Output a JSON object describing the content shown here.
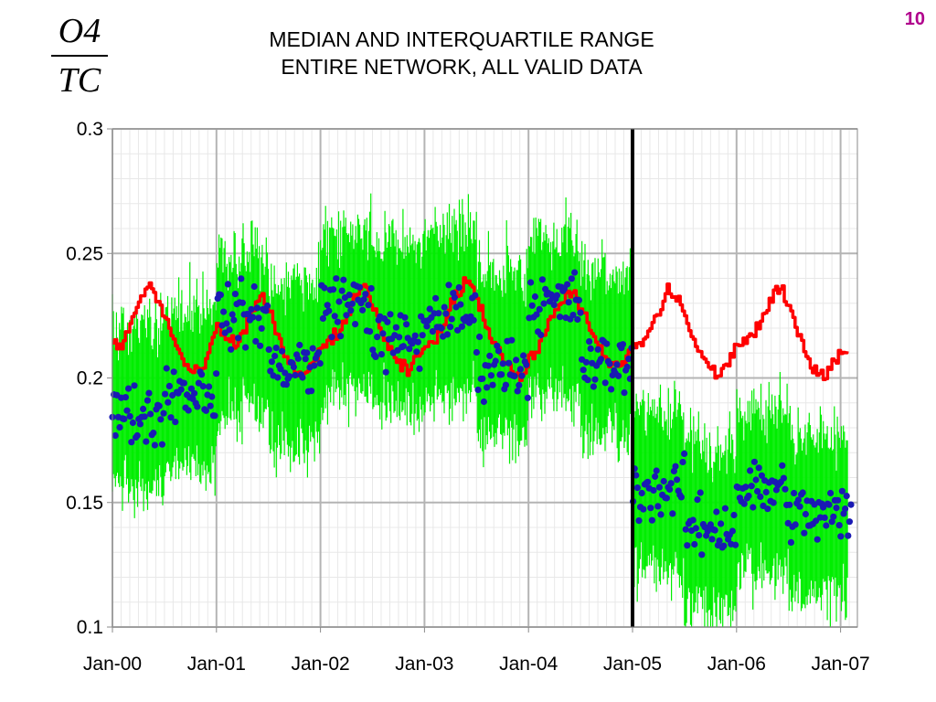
{
  "slide_number": "10",
  "formula": {
    "numerator": "O4",
    "denominator": "TC"
  },
  "title": {
    "line1": "MEDIAN AND INTERQUARTILE RANGE",
    "line2": "ENTIRE NETWORK, ALL VALID DATA"
  },
  "colors": {
    "median_line": "#ff0000",
    "iqr_band": "#00ee00",
    "points": "#1a1ab4",
    "divider": "#000000",
    "grid_major": "#b4b4b4",
    "grid_minor": "#e8e8e8",
    "slide_number": "#b0008c"
  },
  "chart_data": {
    "type": "line",
    "title": "MEDIAN AND INTERQUARTILE RANGE ENTIRE NETWORK, ALL VALID DATA",
    "xlabel": "",
    "ylabel": "",
    "x_tick_labels": [
      "Jan-00",
      "Jan-01",
      "Jan-02",
      "Jan-03",
      "Jan-04",
      "Jan-05",
      "Jan-06",
      "Jan-07"
    ],
    "y_tick_labels": [
      "0.1",
      "0.15",
      "0.2",
      "0.25",
      "0.3"
    ],
    "ylim": [
      0.1,
      0.3
    ],
    "xlim": [
      "2000-01",
      "2007-02"
    ],
    "grid": true,
    "vertical_marker": "2005-01",
    "series": [
      {
        "kind": "line",
        "x": [
          "2000-01",
          "2000-02",
          "2000-03",
          "2000-04",
          "2000-05",
          "2000-06",
          "2000-07",
          "2000-08",
          "2000-09",
          "2000-10",
          "2000-11",
          "2000-12",
          "2001-01",
          "2001-02",
          "2001-03",
          "2001-04",
          "2001-05",
          "2001-06",
          "2001-07",
          "2001-08",
          "2001-09",
          "2001-10",
          "2001-11",
          "2001-12",
          "2002-01",
          "2002-02",
          "2002-03",
          "2002-04",
          "2002-05",
          "2002-06",
          "2002-07",
          "2002-08",
          "2002-09",
          "2002-10",
          "2002-11",
          "2002-12",
          "2003-01",
          "2003-02",
          "2003-03",
          "2003-04",
          "2003-05",
          "2003-06",
          "2003-07",
          "2003-08",
          "2003-09",
          "2003-10",
          "2003-11",
          "2003-12",
          "2004-01",
          "2004-02",
          "2004-03",
          "2004-04",
          "2004-05",
          "2004-06",
          "2004-07",
          "2004-08",
          "2004-09",
          "2004-10",
          "2004-11",
          "2004-12",
          "2005-01",
          "2005-02",
          "2005-03",
          "2005-04",
          "2005-05",
          "2005-06",
          "2005-07",
          "2005-08",
          "2005-09",
          "2005-10",
          "2005-11",
          "2005-12",
          "2006-01",
          "2006-02",
          "2006-03",
          "2006-04",
          "2006-05",
          "2006-06",
          "2006-07",
          "2006-08",
          "2006-09",
          "2006-10",
          "2006-11",
          "2006-12",
          "2007-01"
        ],
        "values": [
          0.215,
          0.212,
          0.222,
          0.23,
          0.238,
          0.232,
          0.225,
          0.215,
          0.207,
          0.203,
          0.201,
          0.21,
          0.22,
          0.216,
          0.213,
          0.218,
          0.226,
          0.234,
          0.228,
          0.216,
          0.208,
          0.203,
          0.2,
          0.205,
          0.212,
          0.215,
          0.219,
          0.224,
          0.232,
          0.238,
          0.229,
          0.218,
          0.21,
          0.205,
          0.203,
          0.208,
          0.212,
          0.216,
          0.22,
          0.229,
          0.236,
          0.24,
          0.232,
          0.222,
          0.214,
          0.208,
          0.203,
          0.2,
          0.206,
          0.213,
          0.22,
          0.226,
          0.232,
          0.236,
          0.228,
          0.22,
          0.211,
          0.207,
          0.204,
          0.207,
          0.212,
          0.214,
          0.22,
          0.226,
          0.236,
          0.232,
          0.225,
          0.215,
          0.208,
          0.203,
          0.201,
          0.207,
          0.213,
          0.216,
          0.218,
          0.224,
          0.232,
          0.236,
          0.228,
          0.218,
          0.209,
          0.204,
          0.2,
          0.207,
          0.211
        ]
      },
      {
        "kind": "band",
        "x_range": [
          "2000-01",
          "2007-01"
        ],
        "period_medians": [
          {
            "from": "2000-01",
            "to": "2000-07",
            "value": 0.188
          },
          {
            "from": "2000-07",
            "to": "2001-01",
            "value": 0.195
          },
          {
            "from": "2001-01",
            "to": "2001-07",
            "value": 0.218
          },
          {
            "from": "2001-07",
            "to": "2002-01",
            "value": 0.205
          },
          {
            "from": "2002-01",
            "to": "2002-07",
            "value": 0.225
          },
          {
            "from": "2002-07",
            "to": "2003-01",
            "value": 0.22
          },
          {
            "from": "2003-01",
            "to": "2003-07",
            "value": 0.225
          },
          {
            "from": "2003-07",
            "to": "2004-01",
            "value": 0.21
          },
          {
            "from": "2004-01",
            "to": "2004-07",
            "value": 0.225
          },
          {
            "from": "2004-07",
            "to": "2005-01",
            "value": 0.21
          },
          {
            "from": "2005-01",
            "to": "2005-07",
            "value": 0.155
          },
          {
            "from": "2005-07",
            "to": "2006-01",
            "value": 0.14
          },
          {
            "from": "2006-01",
            "to": "2006-07",
            "value": 0.155
          },
          {
            "from": "2006-07",
            "to": "2007-01",
            "value": 0.145
          }
        ]
      },
      {
        "kind": "points",
        "x_range": [
          "2000-01",
          "2007-01"
        ],
        "period_medians": [
          {
            "from": "2000-01",
            "to": "2000-07",
            "value": 0.185
          },
          {
            "from": "2000-07",
            "to": "2001-01",
            "value": 0.195
          },
          {
            "from": "2001-01",
            "to": "2001-07",
            "value": 0.225
          },
          {
            "from": "2001-07",
            "to": "2002-01",
            "value": 0.205
          },
          {
            "from": "2002-01",
            "to": "2002-07",
            "value": 0.23
          },
          {
            "from": "2002-07",
            "to": "2003-01",
            "value": 0.215
          },
          {
            "from": "2003-01",
            "to": "2003-07",
            "value": 0.225
          },
          {
            "from": "2003-07",
            "to": "2004-01",
            "value": 0.205
          },
          {
            "from": "2004-01",
            "to": "2004-07",
            "value": 0.23
          },
          {
            "from": "2004-07",
            "to": "2005-01",
            "value": 0.205
          },
          {
            "from": "2005-01",
            "to": "2005-07",
            "value": 0.155
          },
          {
            "from": "2005-07",
            "to": "2006-01",
            "value": 0.14
          },
          {
            "from": "2006-01",
            "to": "2006-07",
            "value": 0.155
          },
          {
            "from": "2006-07",
            "to": "2007-01",
            "value": 0.145
          }
        ]
      }
    ]
  }
}
